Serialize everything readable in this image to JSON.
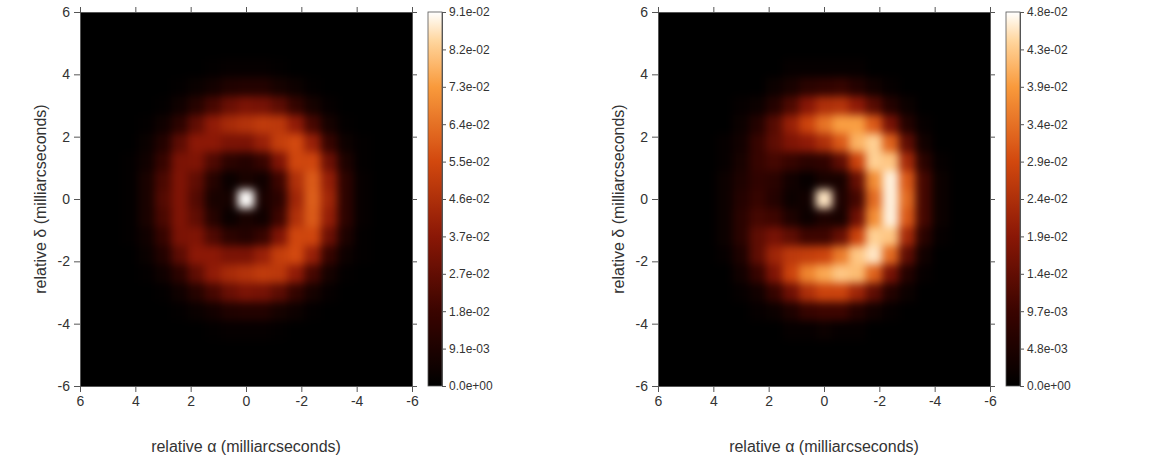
{
  "chart_data": [
    {
      "type": "heatmap",
      "x_label": "relative α (milliarcseconds)",
      "y_label": "relative δ (milliarcseconds)",
      "xlim": [
        6,
        -6
      ],
      "ylim": [
        -6,
        6
      ],
      "xticks": [
        6,
        4,
        2,
        0,
        -2,
        -4,
        -6
      ],
      "yticks": [
        -6,
        -4,
        -2,
        0,
        2,
        4,
        6
      ],
      "x": [
        4.2,
        3.6,
        3,
        2.4,
        1.8,
        1.2,
        0.6,
        0,
        -0.6,
        -1.2,
        -1.8,
        -2.4,
        -3,
        -3.6,
        -4.2
      ],
      "y": [
        4.2,
        3.6,
        3,
        2.4,
        1.8,
        1.2,
        0.6,
        0,
        -0.6,
        -1.2,
        -1.8,
        -2.4,
        -3,
        -3.6,
        -4.2
      ],
      "values": [
        [
          0,
          0,
          0,
          0,
          0,
          0.001,
          0.002,
          0.002,
          0.002,
          0.001,
          0,
          0,
          0,
          0,
          0
        ],
        [
          0,
          0,
          0,
          0.001,
          0.003,
          0.006,
          0.01,
          0.011,
          0.011,
          0.007,
          0.004,
          0.001,
          0,
          0,
          0
        ],
        [
          0,
          0,
          0.001,
          0.005,
          0.012,
          0.021,
          0.029,
          0.033,
          0.032,
          0.026,
          0.016,
          0.007,
          0.002,
          0,
          0
        ],
        [
          0,
          0.001,
          0.005,
          0.014,
          0.027,
          0.038,
          0.044,
          0.047,
          0.05,
          0.049,
          0.038,
          0.021,
          0.007,
          0.001,
          0
        ],
        [
          0,
          0.003,
          0.011,
          0.026,
          0.037,
          0.037,
          0.033,
          0.033,
          0.04,
          0.051,
          0.055,
          0.04,
          0.017,
          0.004,
          0.001
        ],
        [
          0.001,
          0.005,
          0.017,
          0.033,
          0.034,
          0.023,
          0.014,
          0.011,
          0.017,
          0.034,
          0.054,
          0.054,
          0.03,
          0.009,
          0.001
        ],
        [
          0.001,
          0.008,
          0.022,
          0.034,
          0.027,
          0.012,
          0.003,
          0.008,
          0.005,
          0.019,
          0.046,
          0.059,
          0.039,
          0.014,
          0.002
        ],
        [
          0.001,
          0.008,
          0.024,
          0.034,
          0.024,
          0.008,
          0.007,
          0.091,
          0.008,
          0.014,
          0.042,
          0.06,
          0.042,
          0.014,
          0.002
        ],
        [
          0.001,
          0.008,
          0.022,
          0.034,
          0.027,
          0.012,
          0.003,
          0.008,
          0.005,
          0.019,
          0.046,
          0.059,
          0.039,
          0.014,
          0.002
        ],
        [
          0.001,
          0.005,
          0.017,
          0.033,
          0.034,
          0.023,
          0.014,
          0.011,
          0.017,
          0.034,
          0.054,
          0.054,
          0.03,
          0.009,
          0.001
        ],
        [
          0,
          0.003,
          0.011,
          0.026,
          0.037,
          0.037,
          0.033,
          0.033,
          0.04,
          0.051,
          0.055,
          0.04,
          0.017,
          0.004,
          0.001
        ],
        [
          0,
          0.001,
          0.005,
          0.014,
          0.027,
          0.038,
          0.044,
          0.047,
          0.05,
          0.049,
          0.038,
          0.021,
          0.007,
          0.001,
          0
        ],
        [
          0,
          0,
          0.001,
          0.005,
          0.012,
          0.021,
          0.029,
          0.033,
          0.032,
          0.026,
          0.016,
          0.007,
          0.002,
          0,
          0
        ],
        [
          0,
          0,
          0,
          0.001,
          0.003,
          0.006,
          0.01,
          0.011,
          0.011,
          0.007,
          0.004,
          0.001,
          0,
          0,
          0
        ],
        [
          0,
          0,
          0,
          0,
          0,
          0.001,
          0.002,
          0.002,
          0.002,
          0.001,
          0,
          0,
          0,
          0,
          0
        ]
      ],
      "colorbar": {
        "range": [
          0,
          0.0913
        ],
        "ticks": [
          {
            "value": 0,
            "label": "0.0e+00"
          },
          {
            "value": 0.00913,
            "label": "9.1e-03"
          },
          {
            "value": 0.01826,
            "label": "1.8e-02"
          },
          {
            "value": 0.02739,
            "label": "2.7e-02"
          },
          {
            "value": 0.03652,
            "label": "3.7e-02"
          },
          {
            "value": 0.04565,
            "label": "4.6e-02"
          },
          {
            "value": 0.05478,
            "label": "5.5e-02"
          },
          {
            "value": 0.06391,
            "label": "6.4e-02"
          },
          {
            "value": 0.07304,
            "label": "7.3e-02"
          },
          {
            "value": 0.08217,
            "label": "8.2e-02"
          },
          {
            "value": 0.0913,
            "label": "9.1e-02"
          }
        ]
      }
    },
    {
      "type": "heatmap",
      "x_label": "relative α (milliarcseconds)",
      "y_label": "relative δ (milliarcseconds)",
      "xlim": [
        6,
        -6
      ],
      "ylim": [
        -6,
        6
      ],
      "xticks": [
        6,
        4,
        2,
        0,
        -2,
        -4,
        -6
      ],
      "yticks": [
        -6,
        -4,
        -2,
        0,
        2,
        4,
        6
      ],
      "x": [
        4.2,
        3.6,
        3,
        2.4,
        1.8,
        1.2,
        0.6,
        0,
        -0.6,
        -1.2,
        -1.8,
        -2.4,
        -3,
        -3.6,
        -4.2
      ],
      "y": [
        4.2,
        3.6,
        3,
        2.4,
        1.8,
        1.2,
        0.6,
        0,
        -0.6,
        -1.2,
        -1.8,
        -2.4,
        -3,
        -3.6,
        -4.2
      ],
      "values": [
        [
          0,
          0,
          0,
          0,
          0,
          0.001,
          0.001,
          0.001,
          0.001,
          0.001,
          0,
          0,
          0,
          0,
          0
        ],
        [
          0,
          0,
          0,
          0,
          0.002,
          0.004,
          0.007,
          0.008,
          0.009,
          0.006,
          0.003,
          0.001,
          0,
          0,
          0
        ],
        [
          0,
          0,
          0.001,
          0.002,
          0.006,
          0.012,
          0.019,
          0.024,
          0.025,
          0.02,
          0.013,
          0.006,
          0.002,
          0,
          0
        ],
        [
          0,
          0,
          0.002,
          0.006,
          0.013,
          0.021,
          0.028,
          0.034,
          0.039,
          0.039,
          0.031,
          0.017,
          0.006,
          0.001,
          0
        ],
        [
          0,
          0.001,
          0.003,
          0.009,
          0.014,
          0.018,
          0.02,
          0.024,
          0.031,
          0.041,
          0.044,
          0.032,
          0.014,
          0.003,
          0
        ],
        [
          0,
          0.001,
          0.004,
          0.009,
          0.011,
          0.009,
          0.007,
          0.008,
          0.014,
          0.028,
          0.044,
          0.043,
          0.023,
          0.007,
          0.001
        ],
        [
          0,
          0.002,
          0.005,
          0.008,
          0.007,
          0.003,
          0.001,
          0.004,
          0.004,
          0.015,
          0.037,
          0.047,
          0.031,
          0.011,
          0.002
        ],
        [
          0,
          0.002,
          0.006,
          0.009,
          0.006,
          0.002,
          0.003,
          0.046,
          0.005,
          0.011,
          0.033,
          0.047,
          0.033,
          0.011,
          0.002
        ],
        [
          0,
          0.002,
          0.007,
          0.011,
          0.01,
          0.005,
          0.002,
          0.005,
          0.004,
          0.016,
          0.037,
          0.047,
          0.031,
          0.011,
          0.002
        ],
        [
          0,
          0.002,
          0.007,
          0.014,
          0.017,
          0.014,
          0.01,
          0.01,
          0.015,
          0.028,
          0.044,
          0.043,
          0.023,
          0.007,
          0.001
        ],
        [
          0,
          0.001,
          0.005,
          0.014,
          0.022,
          0.026,
          0.027,
          0.028,
          0.035,
          0.043,
          0.046,
          0.033,
          0.014,
          0.003,
          0
        ],
        [
          0,
          0,
          0.003,
          0.009,
          0.018,
          0.028,
          0.036,
          0.04,
          0.043,
          0.042,
          0.032,
          0.017,
          0.006,
          0.001,
          0
        ],
        [
          0,
          0,
          0.001,
          0.003,
          0.009,
          0.016,
          0.024,
          0.028,
          0.028,
          0.022,
          0.014,
          0.006,
          0.002,
          0,
          0
        ],
        [
          0,
          0,
          0,
          0.001,
          0.002,
          0.005,
          0.009,
          0.01,
          0.01,
          0.006,
          0.003,
          0.001,
          0,
          0,
          0
        ],
        [
          0,
          0,
          0,
          0,
          0,
          0.001,
          0.001,
          0.002,
          0.001,
          0.001,
          0,
          0,
          0,
          0,
          0
        ]
      ],
      "colorbar": {
        "range": [
          0,
          0.0483
        ],
        "ticks": [
          {
            "value": 0,
            "label": "0.0e+00"
          },
          {
            "value": 0.00483,
            "label": "4.8e-03"
          },
          {
            "value": 0.00966,
            "label": "9.7e-03"
          },
          {
            "value": 0.01449,
            "label": "1.4e-02"
          },
          {
            "value": 0.01932,
            "label": "1.9e-02"
          },
          {
            "value": 0.02415,
            "label": "2.4e-02"
          },
          {
            "value": 0.02898,
            "label": "2.9e-02"
          },
          {
            "value": 0.03381,
            "label": "3.4e-02"
          },
          {
            "value": 0.03864,
            "label": "3.9e-02"
          },
          {
            "value": 0.04347,
            "label": "4.3e-02"
          },
          {
            "value": 0.0483,
            "label": "4.8e-02"
          }
        ]
      }
    }
  ]
}
